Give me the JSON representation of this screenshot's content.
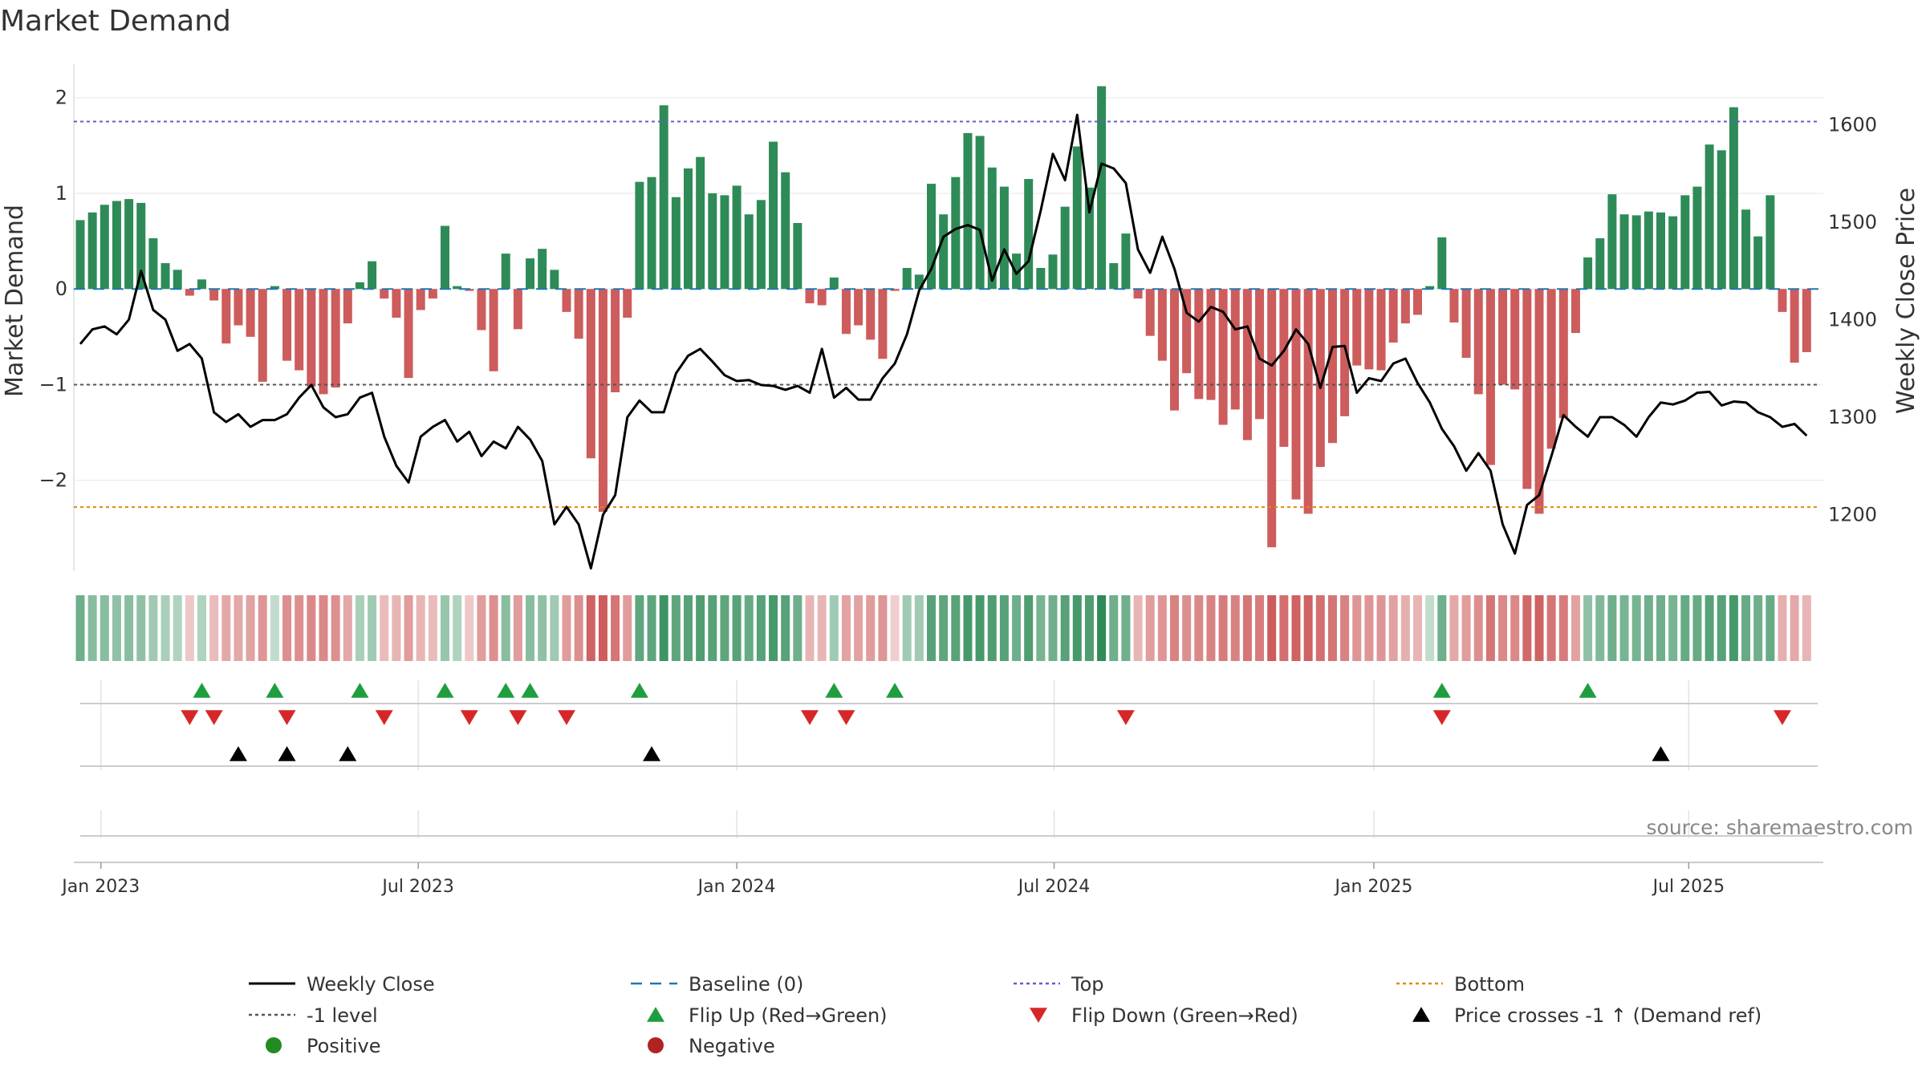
{
  "chart_data": {
    "type": "bar",
    "title": "Market Demand",
    "ylabel": "Market Demand",
    "y2label": "Weekly Close Price",
    "source": "source: sharemaestro.com",
    "ylim": [
      -2.95,
      2.35
    ],
    "y2lim": [
      1142,
      1662
    ],
    "yticks": [
      {
        "v": 2,
        "t": "2"
      },
      {
        "v": 1,
        "t": "1"
      },
      {
        "v": 0,
        "t": "0"
      },
      {
        "v": -1,
        "t": "−1"
      },
      {
        "v": -2,
        "t": "−2"
      }
    ],
    "y2ticks": [
      {
        "v": 1600,
        "t": "1600"
      },
      {
        "v": 1500,
        "t": "1500"
      },
      {
        "v": 1400,
        "t": "1400"
      },
      {
        "v": 1300,
        "t": "1300"
      },
      {
        "v": 1200,
        "t": "1200"
      }
    ],
    "xticks": [
      {
        "w": 1.7,
        "t": "Jan 2023"
      },
      {
        "w": 27.8,
        "t": "Jul 2023"
      },
      {
        "w": 54.0,
        "t": "Jan 2024"
      },
      {
        "w": 80.1,
        "t": "Jul 2024"
      },
      {
        "w": 106.4,
        "t": "Jan 2025"
      },
      {
        "w": 132.3,
        "t": "Jul 2025"
      }
    ],
    "levels": {
      "top": 1.75,
      "minus_one": -1,
      "bottom": -2.28,
      "baseline": 0
    },
    "colors": {
      "positive": "#2e8b57",
      "negative": "#cd5c5c",
      "close": "#000000",
      "baseline": "#1f77b4",
      "top": "#6a5acd",
      "minus_one": "#555555",
      "bottom": "#e08a00",
      "flip_up": "#1e9e3e",
      "flip_down": "#d62728",
      "cross": "#000000"
    },
    "demand": [
      0.72,
      0.8,
      0.88,
      0.92,
      0.94,
      0.9,
      0.53,
      0.27,
      0.2,
      -0.07,
      0.1,
      -0.12,
      -0.57,
      -0.38,
      -0.5,
      -0.97,
      0.03,
      -0.75,
      -0.85,
      -1.02,
      -1.1,
      -1.03,
      -0.36,
      0.07,
      0.29,
      -0.1,
      -0.3,
      -0.93,
      -0.22,
      -0.1,
      0.66,
      0.03,
      -0.02,
      -0.43,
      -0.86,
      0.37,
      -0.42,
      0.32,
      0.42,
      0.2,
      -0.24,
      -0.52,
      -1.77,
      -2.33,
      -1.08,
      -0.3,
      1.12,
      1.17,
      1.92,
      0.96,
      1.26,
      1.38,
      1.0,
      0.98,
      1.08,
      0.78,
      0.93,
      1.54,
      1.22,
      0.69,
      -0.15,
      -0.17,
      0.12,
      -0.47,
      -0.38,
      -0.53,
      -0.73,
      -0.02,
      0.22,
      0.15,
      1.1,
      0.78,
      1.17,
      1.63,
      1.6,
      1.27,
      1.07,
      0.37,
      1.15,
      0.22,
      0.36,
      0.86,
      1.49,
      1.06,
      2.12,
      0.27,
      0.58,
      -0.1,
      -0.49,
      -0.75,
      -1.27,
      -0.88,
      -1.15,
      -1.16,
      -1.42,
      -1.26,
      -1.58,
      -1.36,
      -2.7,
      -1.65,
      -2.2,
      -2.35,
      -1.86,
      -1.61,
      -1.33,
      -0.8,
      -0.84,
      -0.85,
      -0.56,
      -0.36,
      -0.27,
      0.03,
      0.54,
      -0.35,
      -0.72,
      -1.1,
      -1.84,
      -1.0,
      -1.05,
      -2.09,
      -2.35,
      -1.67,
      -1.35,
      -0.46,
      0.33,
      0.53,
      0.99,
      0.78,
      0.77,
      0.81,
      0.8,
      0.76,
      0.98,
      1.07,
      1.51,
      1.45,
      1.9,
      0.83,
      0.55,
      0.98,
      -0.24,
      -0.77,
      -0.66
    ],
    "close": [
      1375,
      1390,
      1393,
      1385,
      1400,
      1450,
      1410,
      1400,
      1368,
      1375,
      1360,
      1305,
      1295,
      1303,
      1290,
      1297,
      1297,
      1303,
      1320,
      1333,
      1310,
      1300,
      1303,
      1320,
      1325,
      1280,
      1250,
      1233,
      1280,
      1290,
      1297,
      1275,
      1285,
      1260,
      1275,
      1268,
      1290,
      1277,
      1255,
      1190,
      1208,
      1190,
      1145,
      1200,
      1220,
      1300,
      1317,
      1305,
      1305,
      1345,
      1363,
      1370,
      1357,
      1343,
      1337,
      1338,
      1333,
      1332,
      1328,
      1332,
      1325,
      1370,
      1320,
      1330,
      1318,
      1318,
      1340,
      1355,
      1385,
      1430,
      1452,
      1485,
      1493,
      1497,
      1492,
      1440,
      1472,
      1447,
      1460,
      1512,
      1570,
      1543,
      1610,
      1510,
      1560,
      1555,
      1540,
      1472,
      1448,
      1485,
      1452,
      1407,
      1398,
      1413,
      1408,
      1390,
      1393,
      1360,
      1353,
      1368,
      1390,
      1375,
      1330,
      1372,
      1373,
      1325,
      1340,
      1337,
      1355,
      1360,
      1335,
      1315,
      1288,
      1270,
      1245,
      1263,
      1245,
      1190,
      1160,
      1210,
      1220,
      1260,
      1302,
      1290,
      1280,
      1300,
      1300,
      1292,
      1280,
      1300,
      1315,
      1313,
      1317,
      1325,
      1326,
      1312,
      1316,
      1315,
      1305,
      1300,
      1290,
      1293,
      1281
    ],
    "shade": [
      0.6,
      0.45,
      0.45,
      0.4,
      0.45,
      0.4,
      0.3,
      0.25,
      0.2,
      0.15,
      0.2,
      0.25,
      0.4,
      0.4,
      0.45,
      0.55,
      0.1,
      0.6,
      0.6,
      0.65,
      0.65,
      0.6,
      0.4,
      0.25,
      0.3,
      0.25,
      0.3,
      0.5,
      0.3,
      0.25,
      0.35,
      0.2,
      0.15,
      0.5,
      0.6,
      0.45,
      0.5,
      0.45,
      0.4,
      0.3,
      0.5,
      0.6,
      0.95,
      1,
      0.8,
      0.5,
      0.7,
      0.7,
      0.9,
      0.7,
      0.75,
      0.8,
      0.75,
      0.7,
      0.75,
      0.65,
      0.75,
      0.85,
      0.75,
      0.6,
      0.3,
      0.3,
      0.3,
      0.45,
      0.45,
      0.5,
      0.55,
      0.1,
      0.3,
      0.3,
      0.75,
      0.7,
      0.75,
      0.85,
      0.85,
      0.8,
      0.75,
      0.6,
      0.8,
      0.55,
      0.6,
      0.75,
      0.85,
      0.8,
      1,
      0.6,
      0.6,
      0.3,
      0.5,
      0.55,
      0.7,
      0.6,
      0.65,
      0.7,
      0.75,
      0.7,
      0.8,
      0.75,
      1,
      0.85,
      0.95,
      0.95,
      0.85,
      0.8,
      0.7,
      0.55,
      0.55,
      0.55,
      0.45,
      0.35,
      0.3,
      0.1,
      0.6,
      0.4,
      0.5,
      0.6,
      0.8,
      0.65,
      0.65,
      0.9,
      0.95,
      0.8,
      0.75,
      0.45,
      0.4,
      0.5,
      0.6,
      0.55,
      0.55,
      0.6,
      0.6,
      0.55,
      0.65,
      0.65,
      0.75,
      0.75,
      0.85,
      0.65,
      0.6,
      0.65,
      0.35,
      0.4,
      0.3
    ],
    "flip_up": [
      10,
      16,
      23,
      30,
      35,
      37,
      46,
      62,
      67,
      112,
      124
    ],
    "flip_down": [
      9,
      11,
      17,
      25,
      32,
      36,
      40,
      60,
      63,
      86,
      112,
      140
    ],
    "price_cross": [
      13,
      17,
      22,
      47,
      130
    ],
    "legend": [
      {
        "label": "Weekly Close",
        "kind": "line-solid"
      },
      {
        "label": "Baseline (0)",
        "kind": "line-dash-baseline"
      },
      {
        "label": "Top",
        "kind": "line-dot-top"
      },
      {
        "label": "Bottom",
        "kind": "line-dot-bottom"
      },
      {
        "label": "-1 level",
        "kind": "line-dot-minus"
      },
      {
        "label": "Flip Up (Red→Green)",
        "kind": "tri-up"
      },
      {
        "label": "Flip Down (Green→Red)",
        "kind": "tri-down"
      },
      {
        "label": "Price crosses -1 ↑ (Demand ref)",
        "kind": "tri-up-black"
      },
      {
        "label": "Positive",
        "kind": "dot-positive"
      },
      {
        "label": "Negative",
        "kind": "dot-negative"
      }
    ]
  }
}
